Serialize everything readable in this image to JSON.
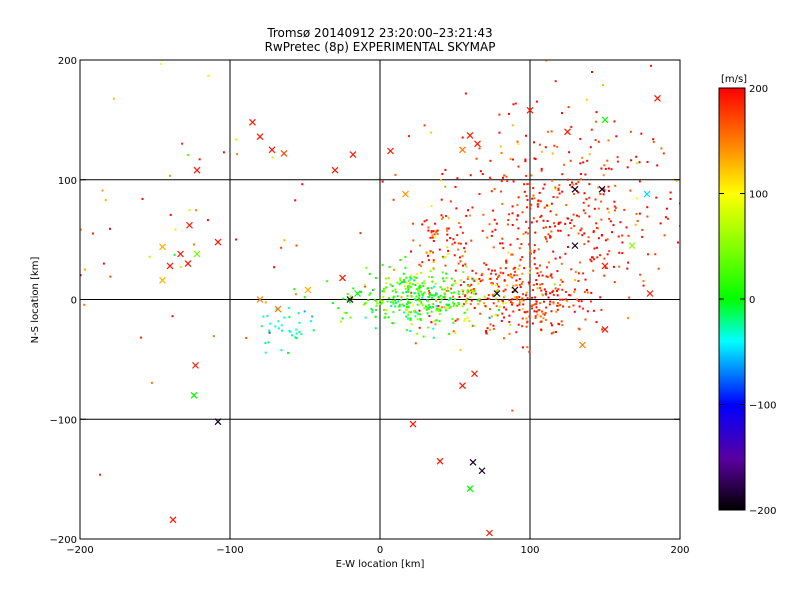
{
  "chart_data": {
    "type": "scatter",
    "title": "Tromsø 20140912 23:20:00–23:21:43",
    "subtitle": "RwPretec (8p) EXPERIMENTAL SKYMAP",
    "xlabel": "E-W location [km]",
    "ylabel": "N-S location [km]",
    "xlim": [
      -200,
      200
    ],
    "ylim": [
      -200,
      200
    ],
    "xticks": [
      "-200",
      "-100",
      "0",
      "100",
      "200"
    ],
    "yticks": [
      "-200",
      "-100",
      "0",
      "100",
      "200"
    ],
    "grid": true,
    "colorbar": {
      "label": "[m/s]",
      "range": [
        -200,
        200
      ],
      "ticks": [
        "-200",
        "-100",
        "0",
        "100",
        "200"
      ],
      "colormap": "rainbow (black-purple-blue-cyan-green-yellow-red)"
    },
    "clusters": [
      {
        "center": [
          110,
          60
        ],
        "spread": [
          38,
          38
        ],
        "n": 380,
        "value": 190,
        "value_spread": 25
      },
      {
        "center": [
          100,
          0
        ],
        "spread": [
          20,
          15
        ],
        "n": 170,
        "value": 180,
        "value_spread": 30
      },
      {
        "center": [
          65,
          5
        ],
        "spread": [
          25,
          15
        ],
        "n": 130,
        "value": 150,
        "value_spread": 40
      },
      {
        "center": [
          25,
          0
        ],
        "spread": [
          20,
          12
        ],
        "n": 330,
        "value": 20,
        "value_spread": 30
      },
      {
        "center": [
          40,
          50
        ],
        "spread": [
          10,
          10
        ],
        "n": 50,
        "value": 150,
        "value_spread": 40
      },
      {
        "center": [
          -60,
          -25
        ],
        "spread": [
          10,
          8
        ],
        "n": 35,
        "value": -30,
        "value_spread": 15
      },
      {
        "center": [
          140,
          110
        ],
        "spread": [
          60,
          50
        ],
        "n": 120,
        "value": 185,
        "value_spread": 35
      },
      {
        "center": [
          -150,
          70
        ],
        "spread": [
          60,
          80
        ],
        "n": 60,
        "value": 180,
        "value_spread": 80
      }
    ],
    "cross_markers": [
      {
        "x": -85,
        "y": 148,
        "v": 190
      },
      {
        "x": -80,
        "y": 136,
        "v": 190
      },
      {
        "x": -72,
        "y": 125,
        "v": 190
      },
      {
        "x": -64,
        "y": 122,
        "v": 170
      },
      {
        "x": -18,
        "y": 121,
        "v": 190
      },
      {
        "x": 7,
        "y": 124,
        "v": 190
      },
      {
        "x": 55,
        "y": 125,
        "v": 150
      },
      {
        "x": 60,
        "y": 137,
        "v": 190
      },
      {
        "x": 65,
        "y": 130,
        "v": 190
      },
      {
        "x": 100,
        "y": 158,
        "v": 190
      },
      {
        "x": 125,
        "y": 140,
        "v": 190
      },
      {
        "x": 185,
        "y": 168,
        "v": 190
      },
      {
        "x": 150,
        "y": 150,
        "v": 0
      },
      {
        "x": -122,
        "y": 108,
        "v": 190
      },
      {
        "x": -30,
        "y": 108,
        "v": 190
      },
      {
        "x": 17,
        "y": 88,
        "v": 140
      },
      {
        "x": 130,
        "y": 92,
        "v": -190
      },
      {
        "x": 148,
        "y": 92,
        "v": -190
      },
      {
        "x": 178,
        "y": 88,
        "v": -50
      },
      {
        "x": -145,
        "y": 44,
        "v": 130
      },
      {
        "x": -145,
        "y": 16,
        "v": 130
      },
      {
        "x": -127,
        "y": 62,
        "v": 190
      },
      {
        "x": -140,
        "y": 28,
        "v": 190
      },
      {
        "x": -133,
        "y": 38,
        "v": 190
      },
      {
        "x": -128,
        "y": 30,
        "v": 190
      },
      {
        "x": -122,
        "y": 38,
        "v": 40
      },
      {
        "x": -108,
        "y": 48,
        "v": 190
      },
      {
        "x": -48,
        "y": 8,
        "v": 130
      },
      {
        "x": -80,
        "y": 0,
        "v": 150
      },
      {
        "x": -68,
        "y": -8,
        "v": 150
      },
      {
        "x": -25,
        "y": 18,
        "v": 190
      },
      {
        "x": -20,
        "y": 0,
        "v": -190
      },
      {
        "x": -15,
        "y": 5,
        "v": 0
      },
      {
        "x": 168,
        "y": 45,
        "v": 50
      },
      {
        "x": 130,
        "y": 45,
        "v": -190
      },
      {
        "x": 150,
        "y": 28,
        "v": 190
      },
      {
        "x": 180,
        "y": 5,
        "v": 190
      },
      {
        "x": 135,
        "y": -38,
        "v": 150
      },
      {
        "x": 150,
        "y": -25,
        "v": 190
      },
      {
        "x": 55,
        "y": -72,
        "v": 190
      },
      {
        "x": 63,
        "y": -62,
        "v": 190
      },
      {
        "x": -123,
        "y": -55,
        "v": 190
      },
      {
        "x": -124,
        "y": -80,
        "v": 0
      },
      {
        "x": -108,
        "y": -102,
        "v": -190
      },
      {
        "x": 22,
        "y": -104,
        "v": 190
      },
      {
        "x": 40,
        "y": -135,
        "v": 190
      },
      {
        "x": 62,
        "y": -136,
        "v": -190
      },
      {
        "x": 68,
        "y": -143,
        "v": -190
      },
      {
        "x": 60,
        "y": -158,
        "v": 0
      },
      {
        "x": -138,
        "y": -184,
        "v": 190
      },
      {
        "x": 73,
        "y": -195,
        "v": 190
      },
      {
        "x": 90,
        "y": 8,
        "v": -190
      },
      {
        "x": 78,
        "y": 5,
        "v": -190
      }
    ]
  }
}
